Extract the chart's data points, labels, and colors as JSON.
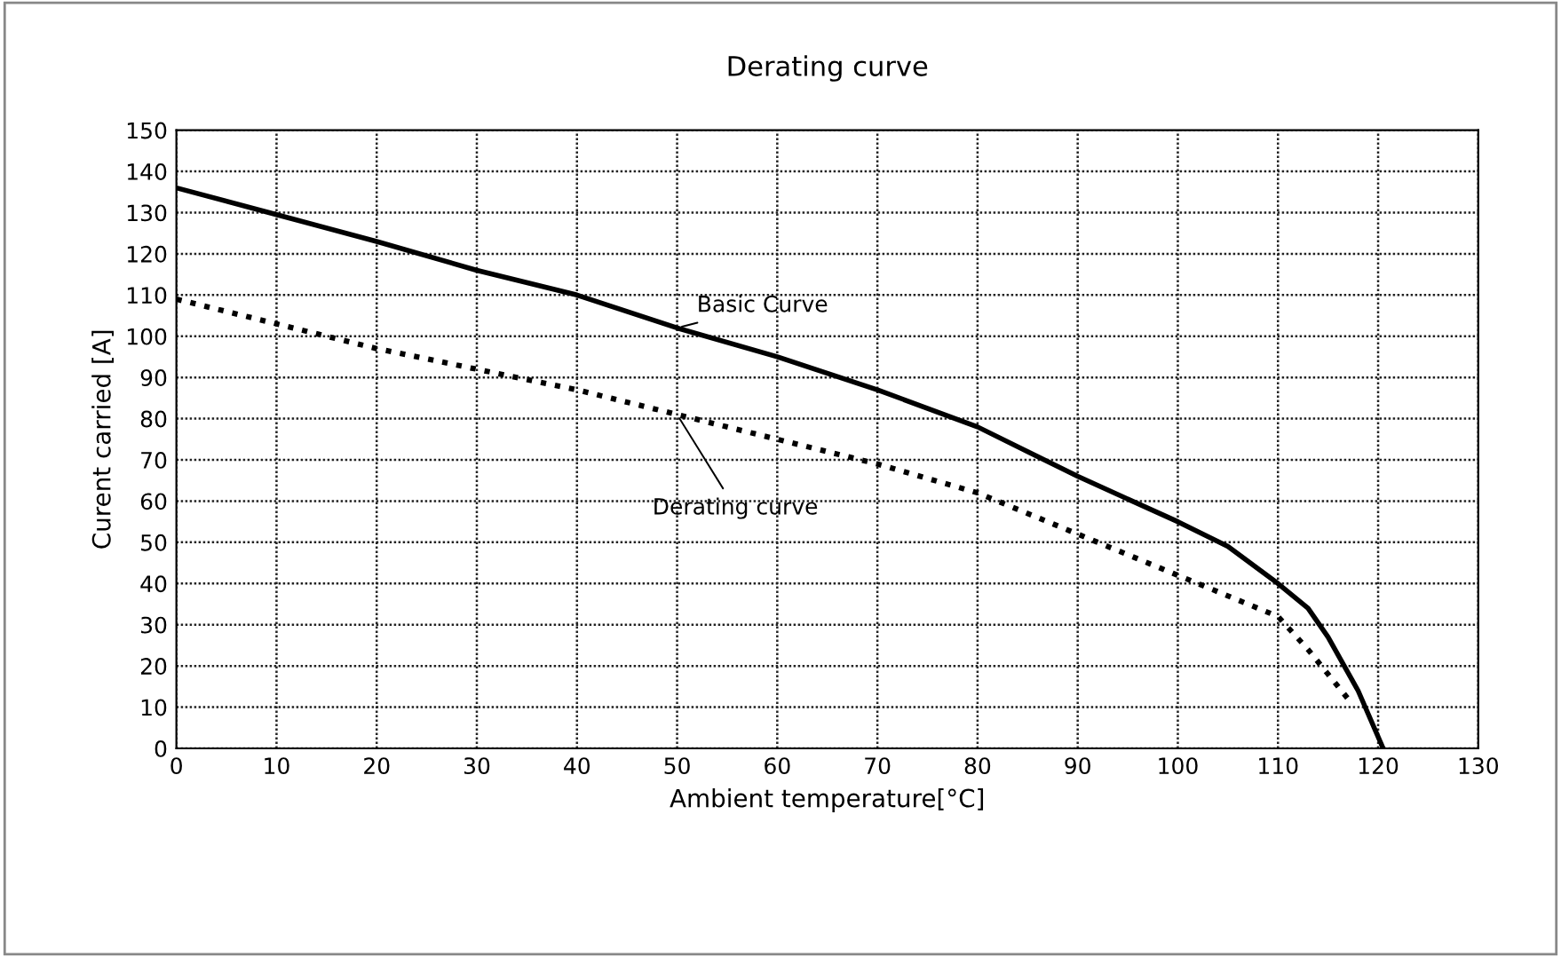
{
  "chart_data": {
    "type": "line",
    "title": "Derating curve",
    "xlabel": "Ambient temperature[°C]",
    "ylabel": "Curent carried [A]",
    "series": [
      {
        "name": "Basic Curve",
        "color": "#000000",
        "line_style": "solid",
        "x": [
          0,
          10,
          20,
          30,
          40,
          50,
          60,
          70,
          80,
          85,
          90,
          100,
          105,
          110,
          113,
          115,
          118,
          120.5
        ],
        "values": [
          136,
          129.5,
          123,
          116,
          110,
          102,
          95,
          87,
          78,
          72,
          66,
          55,
          49,
          40,
          34,
          27,
          14,
          0
        ]
      },
      {
        "name": "Derating curve",
        "color": "#000000",
        "line_style": "dotted",
        "x": [
          0,
          10,
          20,
          30,
          40,
          50,
          60,
          70,
          80,
          90,
          100,
          105,
          110,
          113,
          115,
          117
        ],
        "values": [
          109,
          103,
          97,
          92,
          87,
          81,
          75,
          69,
          62,
          52,
          42,
          37,
          32,
          24,
          18,
          12
        ]
      }
    ],
    "xlim": [
      0,
      130
    ],
    "ylim": [
      0,
      150
    ],
    "xticks": [
      0,
      10,
      20,
      30,
      40,
      50,
      60,
      70,
      80,
      90,
      100,
      110,
      120,
      130
    ],
    "yticks": [
      0,
      10,
      20,
      30,
      40,
      50,
      60,
      70,
      80,
      90,
      100,
      110,
      120,
      130,
      140,
      150
    ],
    "grid": true,
    "legend": false
  }
}
